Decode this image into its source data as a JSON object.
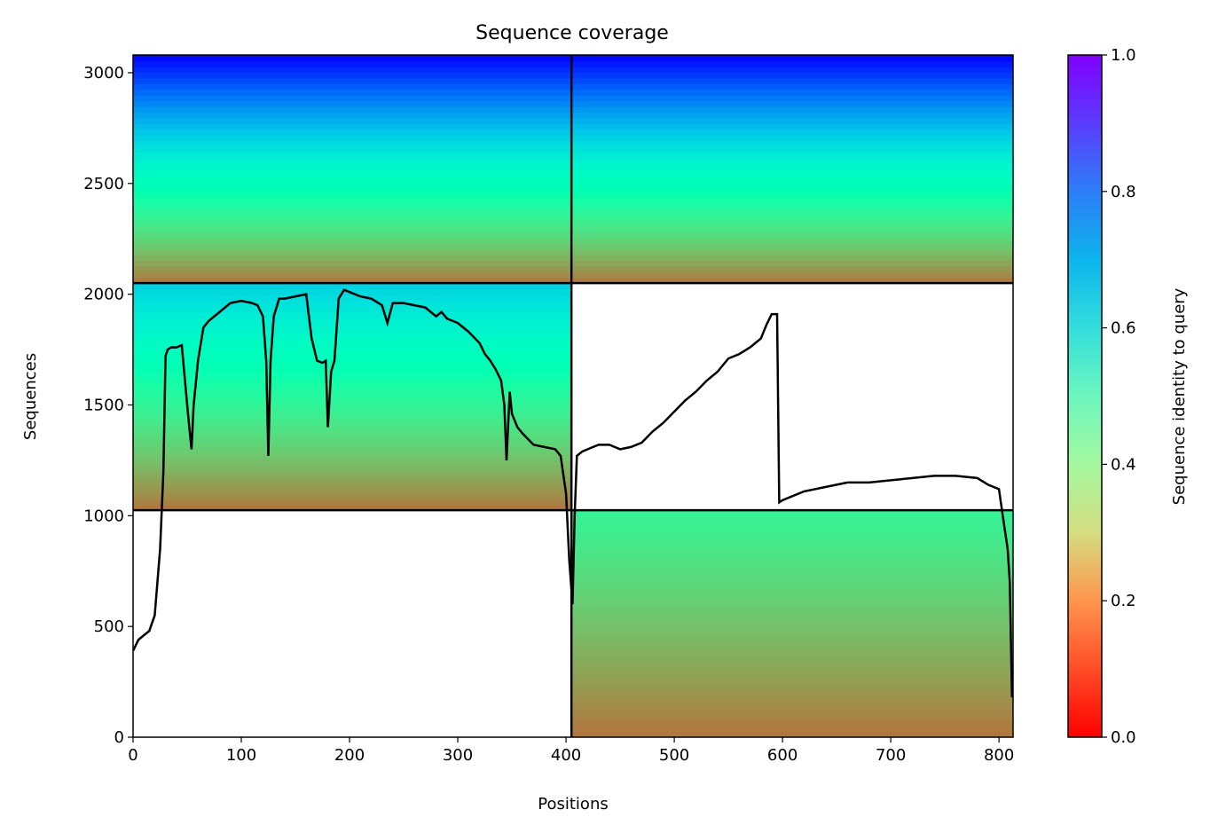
{
  "chart_data": {
    "type": "heatmap",
    "title": "Sequence coverage",
    "xlabel": "Positions",
    "ylabel": "Sequences",
    "colorbar_label": "Sequence identity to query",
    "xlim": [
      0,
      813
    ],
    "ylim": [
      0,
      3080
    ],
    "x_ticks": [
      "0",
      "100",
      "200",
      "300",
      "400",
      "500",
      "600",
      "700",
      "800"
    ],
    "y_ticks": [
      "0",
      "500",
      "1000",
      "1500",
      "2000",
      "2500",
      "3000"
    ],
    "colorbar_ticks": [
      "0.0",
      "0.2",
      "0.4",
      "0.6",
      "0.8",
      "1.0"
    ],
    "colormap": "rainbow_r",
    "grid": false,
    "divider_x": 405,
    "divider_y": [
      1025,
      2050
    ],
    "blocks": [
      {
        "name": "top-left",
        "x_range": [
          0,
          405
        ],
        "y_range": [
          2050,
          3080
        ],
        "identity_range": [
          0.15,
          1.0
        ]
      },
      {
        "name": "top-right",
        "x_range": [
          405,
          813
        ],
        "y_range": [
          2050,
          3080
        ],
        "identity_range": [
          0.15,
          1.0
        ]
      },
      {
        "name": "middle-left",
        "x_range": [
          0,
          405
        ],
        "y_range": [
          1025,
          2050
        ],
        "identity_range": [
          0.15,
          0.7
        ]
      },
      {
        "name": "bottom-right",
        "x_range": [
          405,
          813
        ],
        "y_range": [
          0,
          1025
        ],
        "identity_range": [
          0.15,
          0.4
        ]
      }
    ],
    "coverage_line": {
      "x": [
        0,
        5,
        10,
        15,
        20,
        25,
        28,
        30,
        32,
        35,
        40,
        45,
        50,
        52,
        54,
        56,
        58,
        60,
        65,
        70,
        80,
        90,
        100,
        110,
        115,
        120,
        123,
        125,
        127,
        130,
        135,
        140,
        150,
        160,
        165,
        170,
        175,
        178,
        180,
        183,
        186,
        190,
        195,
        200,
        210,
        220,
        230,
        235,
        240,
        250,
        260,
        270,
        280,
        285,
        290,
        300,
        310,
        320,
        325,
        330,
        335,
        340,
        343,
        345,
        348,
        350,
        355,
        360,
        370,
        380,
        390,
        395,
        400,
        403,
        406,
        408,
        410,
        415,
        420,
        430,
        440,
        450,
        460,
        470,
        480,
        490,
        500,
        510,
        520,
        530,
        540,
        550,
        560,
        570,
        580,
        585,
        590,
        595,
        597,
        600,
        620,
        640,
        650,
        660,
        680,
        700,
        720,
        740,
        760,
        780,
        790,
        800,
        805,
        808,
        810,
        812
      ],
      "y": [
        390,
        440,
        460,
        480,
        550,
        850,
        1200,
        1720,
        1750,
        1760,
        1760,
        1770,
        1500,
        1400,
        1300,
        1500,
        1600,
        1700,
        1850,
        1880,
        1920,
        1960,
        1970,
        1960,
        1950,
        1900,
        1700,
        1270,
        1700,
        1900,
        1980,
        1980,
        1990,
        2000,
        1800,
        1700,
        1690,
        1700,
        1400,
        1650,
        1700,
        1980,
        2020,
        2010,
        1990,
        1980,
        1950,
        1870,
        1960,
        1960,
        1950,
        1940,
        1900,
        1920,
        1890,
        1870,
        1830,
        1780,
        1730,
        1700,
        1660,
        1610,
        1500,
        1250,
        1560,
        1460,
        1400,
        1370,
        1320,
        1310,
        1300,
        1270,
        1100,
        800,
        600,
        1000,
        1270,
        1290,
        1300,
        1320,
        1320,
        1300,
        1310,
        1330,
        1380,
        1420,
        1470,
        1520,
        1560,
        1610,
        1650,
        1710,
        1730,
        1760,
        1800,
        1860,
        1910,
        1910,
        1060,
        1070,
        1110,
        1130,
        1140,
        1150,
        1150,
        1160,
        1170,
        1180,
        1180,
        1170,
        1140,
        1120,
        950,
        850,
        700,
        180
      ]
    }
  }
}
